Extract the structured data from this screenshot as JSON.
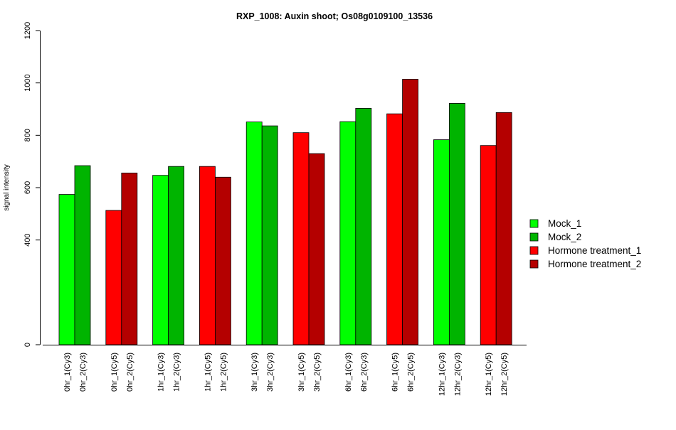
{
  "chart_data": {
    "type": "bar",
    "title": "RXP_1008: Auxin shoot; Os08g0109100_13536",
    "xlabel": "",
    "ylabel": "signal intensity",
    "ylim": [
      0,
      1200
    ],
    "yticks": [
      0,
      400,
      600,
      800,
      1000,
      1200
    ],
    "legend_position": "right",
    "series_legend": [
      {
        "name": "Mock_1",
        "color": "#00ff00"
      },
      {
        "name": "Mock_2",
        "color": "#00b400"
      },
      {
        "name": "Hormone treatment_1",
        "color": "#ff0000"
      },
      {
        "name": "Hormone treatment_2",
        "color": "#b40000"
      }
    ],
    "groups": [
      {
        "bars": [
          {
            "label": "0hr_1(Cy3)",
            "value": 574,
            "color": "#00ff00"
          },
          {
            "label": "0hr_2(Cy3)",
            "value": 684,
            "color": "#00b400"
          }
        ]
      },
      {
        "bars": [
          {
            "label": "0hr_1(Cy5)",
            "value": 513,
            "color": "#ff0000"
          },
          {
            "label": "0hr_2(Cy5)",
            "value": 656,
            "color": "#b40000"
          }
        ]
      },
      {
        "bars": [
          {
            "label": "1hr_1(Cy3)",
            "value": 647,
            "color": "#00ff00"
          },
          {
            "label": "1hr_2(Cy3)",
            "value": 681,
            "color": "#00b400"
          }
        ]
      },
      {
        "bars": [
          {
            "label": "1hr_1(Cy5)",
            "value": 681,
            "color": "#ff0000"
          },
          {
            "label": "1hr_2(Cy5)",
            "value": 640,
            "color": "#b40000"
          }
        ]
      },
      {
        "bars": [
          {
            "label": "3hr_1(Cy3)",
            "value": 851,
            "color": "#00ff00"
          },
          {
            "label": "3hr_2(Cy3)",
            "value": 836,
            "color": "#00b400"
          }
        ]
      },
      {
        "bars": [
          {
            "label": "3hr_1(Cy5)",
            "value": 810,
            "color": "#ff0000"
          },
          {
            "label": "3hr_2(Cy5)",
            "value": 730,
            "color": "#b40000"
          }
        ]
      },
      {
        "bars": [
          {
            "label": "6hr_1(Cy3)",
            "value": 852,
            "color": "#00ff00"
          },
          {
            "label": "6hr_2(Cy3)",
            "value": 903,
            "color": "#00b400"
          }
        ]
      },
      {
        "bars": [
          {
            "label": "6hr_1(Cy5)",
            "value": 882,
            "color": "#ff0000"
          },
          {
            "label": "6hr_2(Cy5)",
            "value": 1014,
            "color": "#b40000"
          }
        ]
      },
      {
        "bars": [
          {
            "label": "12hr_1(Cy3)",
            "value": 783,
            "color": "#00ff00"
          },
          {
            "label": "12hr_2(Cy3)",
            "value": 922,
            "color": "#00b400"
          }
        ]
      },
      {
        "bars": [
          {
            "label": "12hr_1(Cy5)",
            "value": 761,
            "color": "#ff0000"
          },
          {
            "label": "12hr_2(Cy5)",
            "value": 887,
            "color": "#b40000"
          }
        ]
      }
    ]
  }
}
